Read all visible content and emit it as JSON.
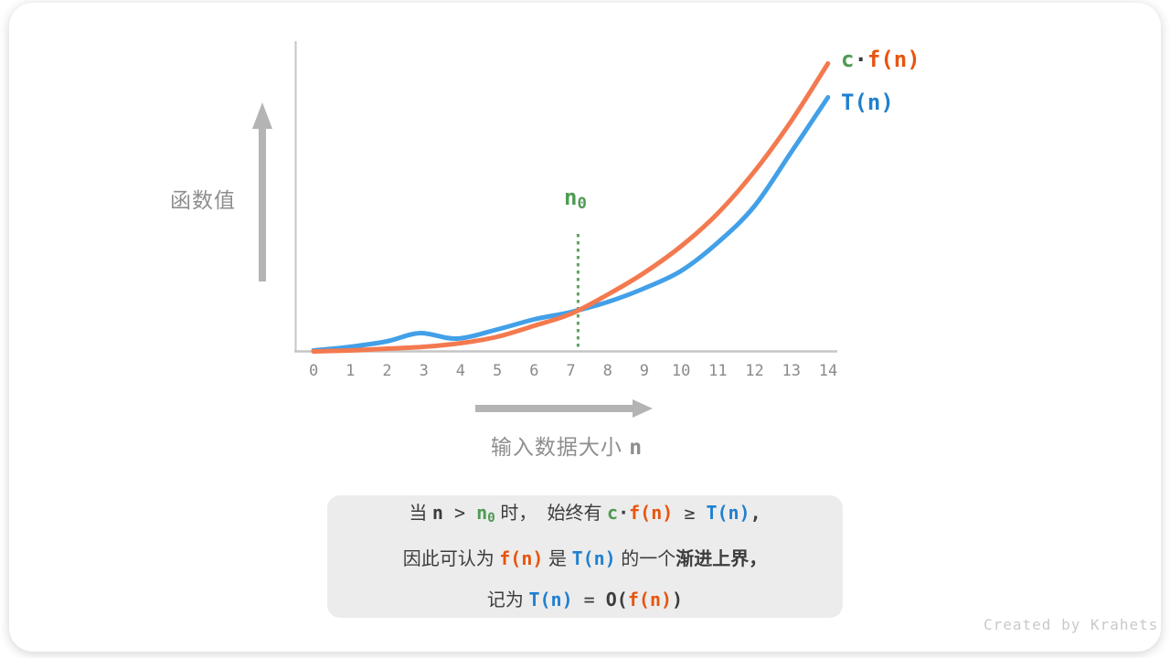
{
  "watermark": "Created by Krahets",
  "colors": {
    "curve_orange": "#f4794f",
    "curve_blue": "#42a0e8",
    "green_accent": "#4f9b53",
    "dashed_green": "#5da45f",
    "orange_text": "#e8540e",
    "blue_text": "#2080d0",
    "dark_text": "#3c3c3c",
    "gray_label": "#8e8e8e",
    "axis_gray": "#c6c6c6",
    "arrow_gray": "#b4b4b4",
    "note_box_bg": "#ececec",
    "watermark_gray": "#c9c9c9"
  },
  "chart": {
    "y_axis_label": "函数值",
    "x_axis_label": [
      {
        "t": "输入数据大小 ",
        "c": "zh gray"
      },
      {
        "t": "n",
        "c": "mono gray"
      }
    ],
    "legend_cf": [
      {
        "t": "c",
        "c": "g"
      },
      {
        "t": "·",
        "c": "d"
      },
      {
        "t": "f(n)",
        "c": "o"
      }
    ],
    "legend_t": [
      {
        "t": "T(n)",
        "c": "b"
      }
    ],
    "n0_label": [
      {
        "t": "n",
        "c": "g"
      },
      {
        "t": "0",
        "c": "g",
        "sub": true
      }
    ]
  },
  "chart_data": {
    "type": "line",
    "title": "",
    "xlabel": "输入数据大小 n",
    "ylabel": "函数值",
    "x_ticks": [
      0,
      1,
      2,
      3,
      4,
      5,
      6,
      7,
      8,
      9,
      10,
      11,
      12,
      13,
      14
    ],
    "xlim": [
      0,
      14
    ],
    "ylim": [
      0,
      340
    ],
    "grid": false,
    "legend_position": "top-right",
    "annotation": {
      "label": "n0",
      "x": 7.2,
      "meaning": "crossing point where c·f(n) begins to dominate T(n)"
    },
    "series": [
      {
        "name": "c·f(n)",
        "color": "#f4794f",
        "x": [
          0,
          1,
          2,
          3,
          4,
          5,
          6,
          7,
          8,
          9,
          10,
          11,
          12,
          13,
          14
        ],
        "values": [
          0,
          1,
          3,
          5,
          9,
          16,
          28,
          41,
          62,
          86,
          115,
          151,
          197,
          252,
          315
        ]
      },
      {
        "name": "T(n)",
        "color": "#42a0e8",
        "x": [
          0,
          1,
          2,
          2.9,
          3.9,
          5,
          6,
          7,
          8,
          9,
          10,
          11,
          12,
          13,
          14
        ],
        "values": [
          1,
          5,
          11,
          20,
          14,
          24,
          35,
          43,
          54,
          69,
          88,
          119,
          159,
          218,
          278
        ]
      }
    ]
  },
  "note_box": {
    "lines": [
      [
        {
          "t": "当 ",
          "c": "zh"
        },
        {
          "t": "n",
          "c": "d"
        },
        {
          "t": " > ",
          "c": "op"
        },
        {
          "t": "n",
          "c": "g"
        },
        {
          "t": "0",
          "c": "g",
          "sub": true
        },
        {
          "t": " 时， ",
          "c": "zh"
        },
        {
          "t": " 始终有 ",
          "c": "zh"
        },
        {
          "t": "c",
          "c": "g"
        },
        {
          "t": "·",
          "c": "d"
        },
        {
          "t": "f(n)",
          "c": "o"
        },
        {
          "t": " ≥ ",
          "c": "op"
        },
        {
          "t": "T(n)",
          "c": "b"
        },
        {
          "t": ",",
          "c": "d"
        }
      ],
      [
        {
          "t": "因此可认为 ",
          "c": "zh"
        },
        {
          "t": "f(n)",
          "c": "o"
        },
        {
          "t": " 是 ",
          "c": "zh"
        },
        {
          "t": "T(n)",
          "c": "b"
        },
        {
          "t": " 的一个",
          "c": "zh"
        },
        {
          "t": "渐进上界，",
          "c": "zhb"
        }
      ],
      [
        {
          "t": "记为 ",
          "c": "zh"
        },
        {
          "t": "T(n)",
          "c": "b"
        },
        {
          "t": " = ",
          "c": "op"
        },
        {
          "t": "O(",
          "c": "d"
        },
        {
          "t": "f(n)",
          "c": "o"
        },
        {
          "t": ")",
          "c": "d"
        }
      ]
    ]
  }
}
